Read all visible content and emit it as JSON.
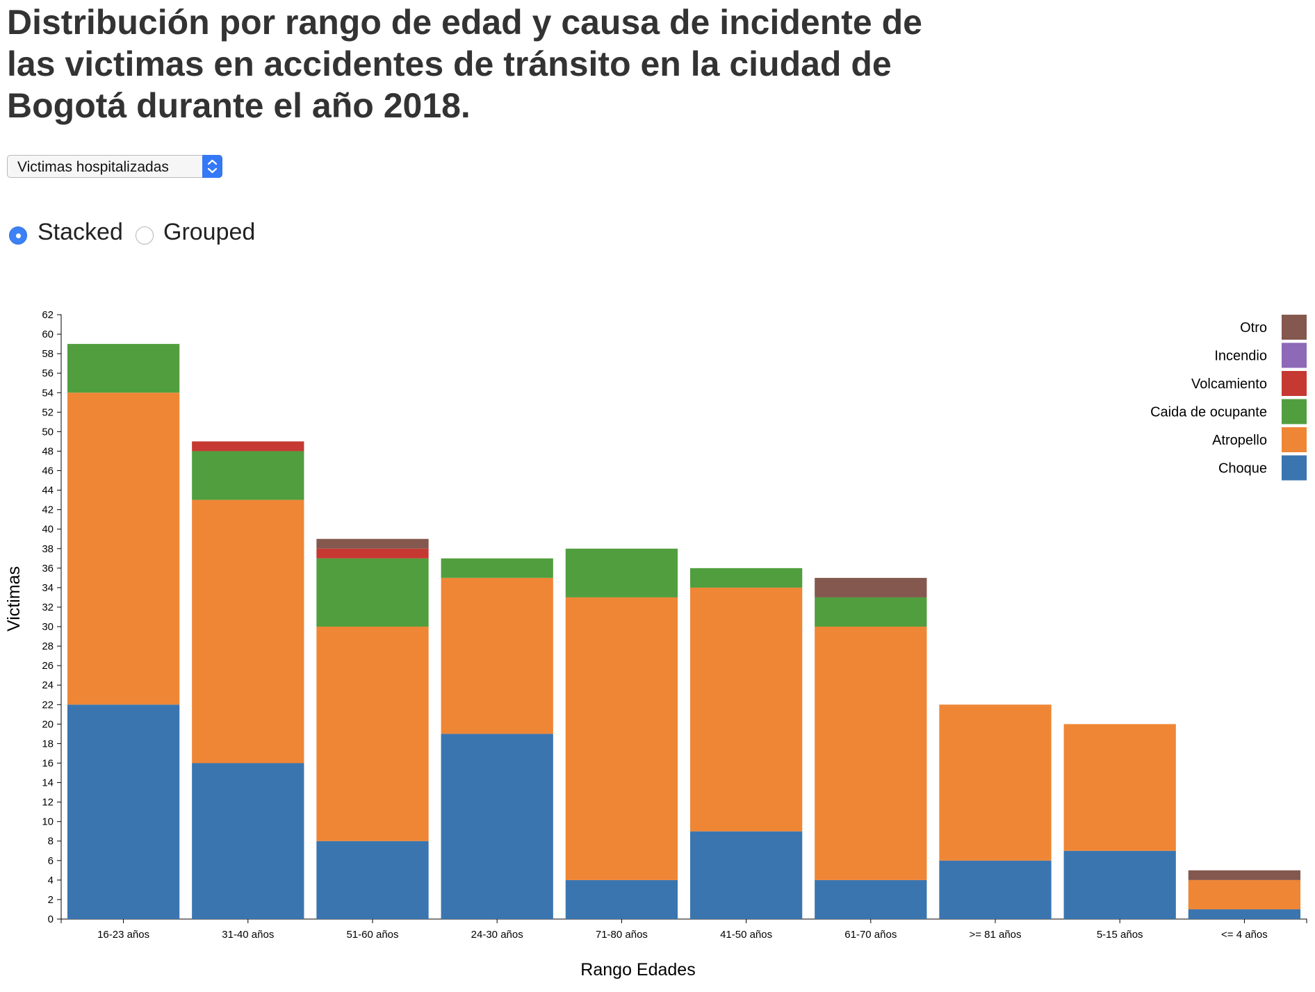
{
  "header": {
    "title": "Distribución por rango de edad y causa de incidente de las victimas en accidentes de tránsito en la ciudad de Bogotá durante el año 2018."
  },
  "controls": {
    "dropdown_value": "Victimas hospitalizadas",
    "radio_stacked_label": "Stacked",
    "radio_grouped_label": "Grouped",
    "selected_mode": "stacked"
  },
  "chart_data": {
    "type": "bar",
    "stacked": true,
    "xlabel": "Rango Edades",
    "ylabel": "Victimas",
    "ylim": [
      0,
      62
    ],
    "yticks": [
      0,
      2,
      4,
      6,
      8,
      10,
      12,
      14,
      16,
      18,
      20,
      22,
      24,
      26,
      28,
      30,
      32,
      34,
      36,
      38,
      40,
      42,
      44,
      46,
      48,
      50,
      52,
      54,
      56,
      58,
      60,
      62
    ],
    "grid": false,
    "legend_position": "top-right",
    "categories": [
      "16-23 años",
      "31-40 años",
      "51-60 años",
      "24-30 años",
      "71-80 años",
      "41-50 años",
      "61-70 años",
      ">= 81 años",
      "5-15 años",
      "<= 4 años"
    ],
    "series": [
      {
        "name": "Choque",
        "color": "#3a75b0",
        "values": [
          22,
          16,
          8,
          19,
          4,
          9,
          4,
          6,
          7,
          1
        ]
      },
      {
        "name": "Atropello",
        "color": "#ef8636",
        "values": [
          32,
          27,
          22,
          16,
          29,
          25,
          26,
          16,
          13,
          3
        ]
      },
      {
        "name": "Caida de ocupante",
        "color": "#519e3e",
        "values": [
          5,
          5,
          7,
          2,
          5,
          2,
          3,
          0,
          0,
          0
        ]
      },
      {
        "name": "Volcamiento",
        "color": "#c53932",
        "values": [
          0,
          1,
          1,
          0,
          0,
          0,
          0,
          0,
          0,
          0
        ]
      },
      {
        "name": "Incendio",
        "color": "#8d69b8",
        "values": [
          0,
          0,
          0,
          0,
          0,
          0,
          0,
          0,
          0,
          0
        ]
      },
      {
        "name": "Otro",
        "color": "#84584e",
        "values": [
          0,
          0,
          1,
          0,
          0,
          0,
          2,
          0,
          0,
          1
        ]
      }
    ]
  }
}
